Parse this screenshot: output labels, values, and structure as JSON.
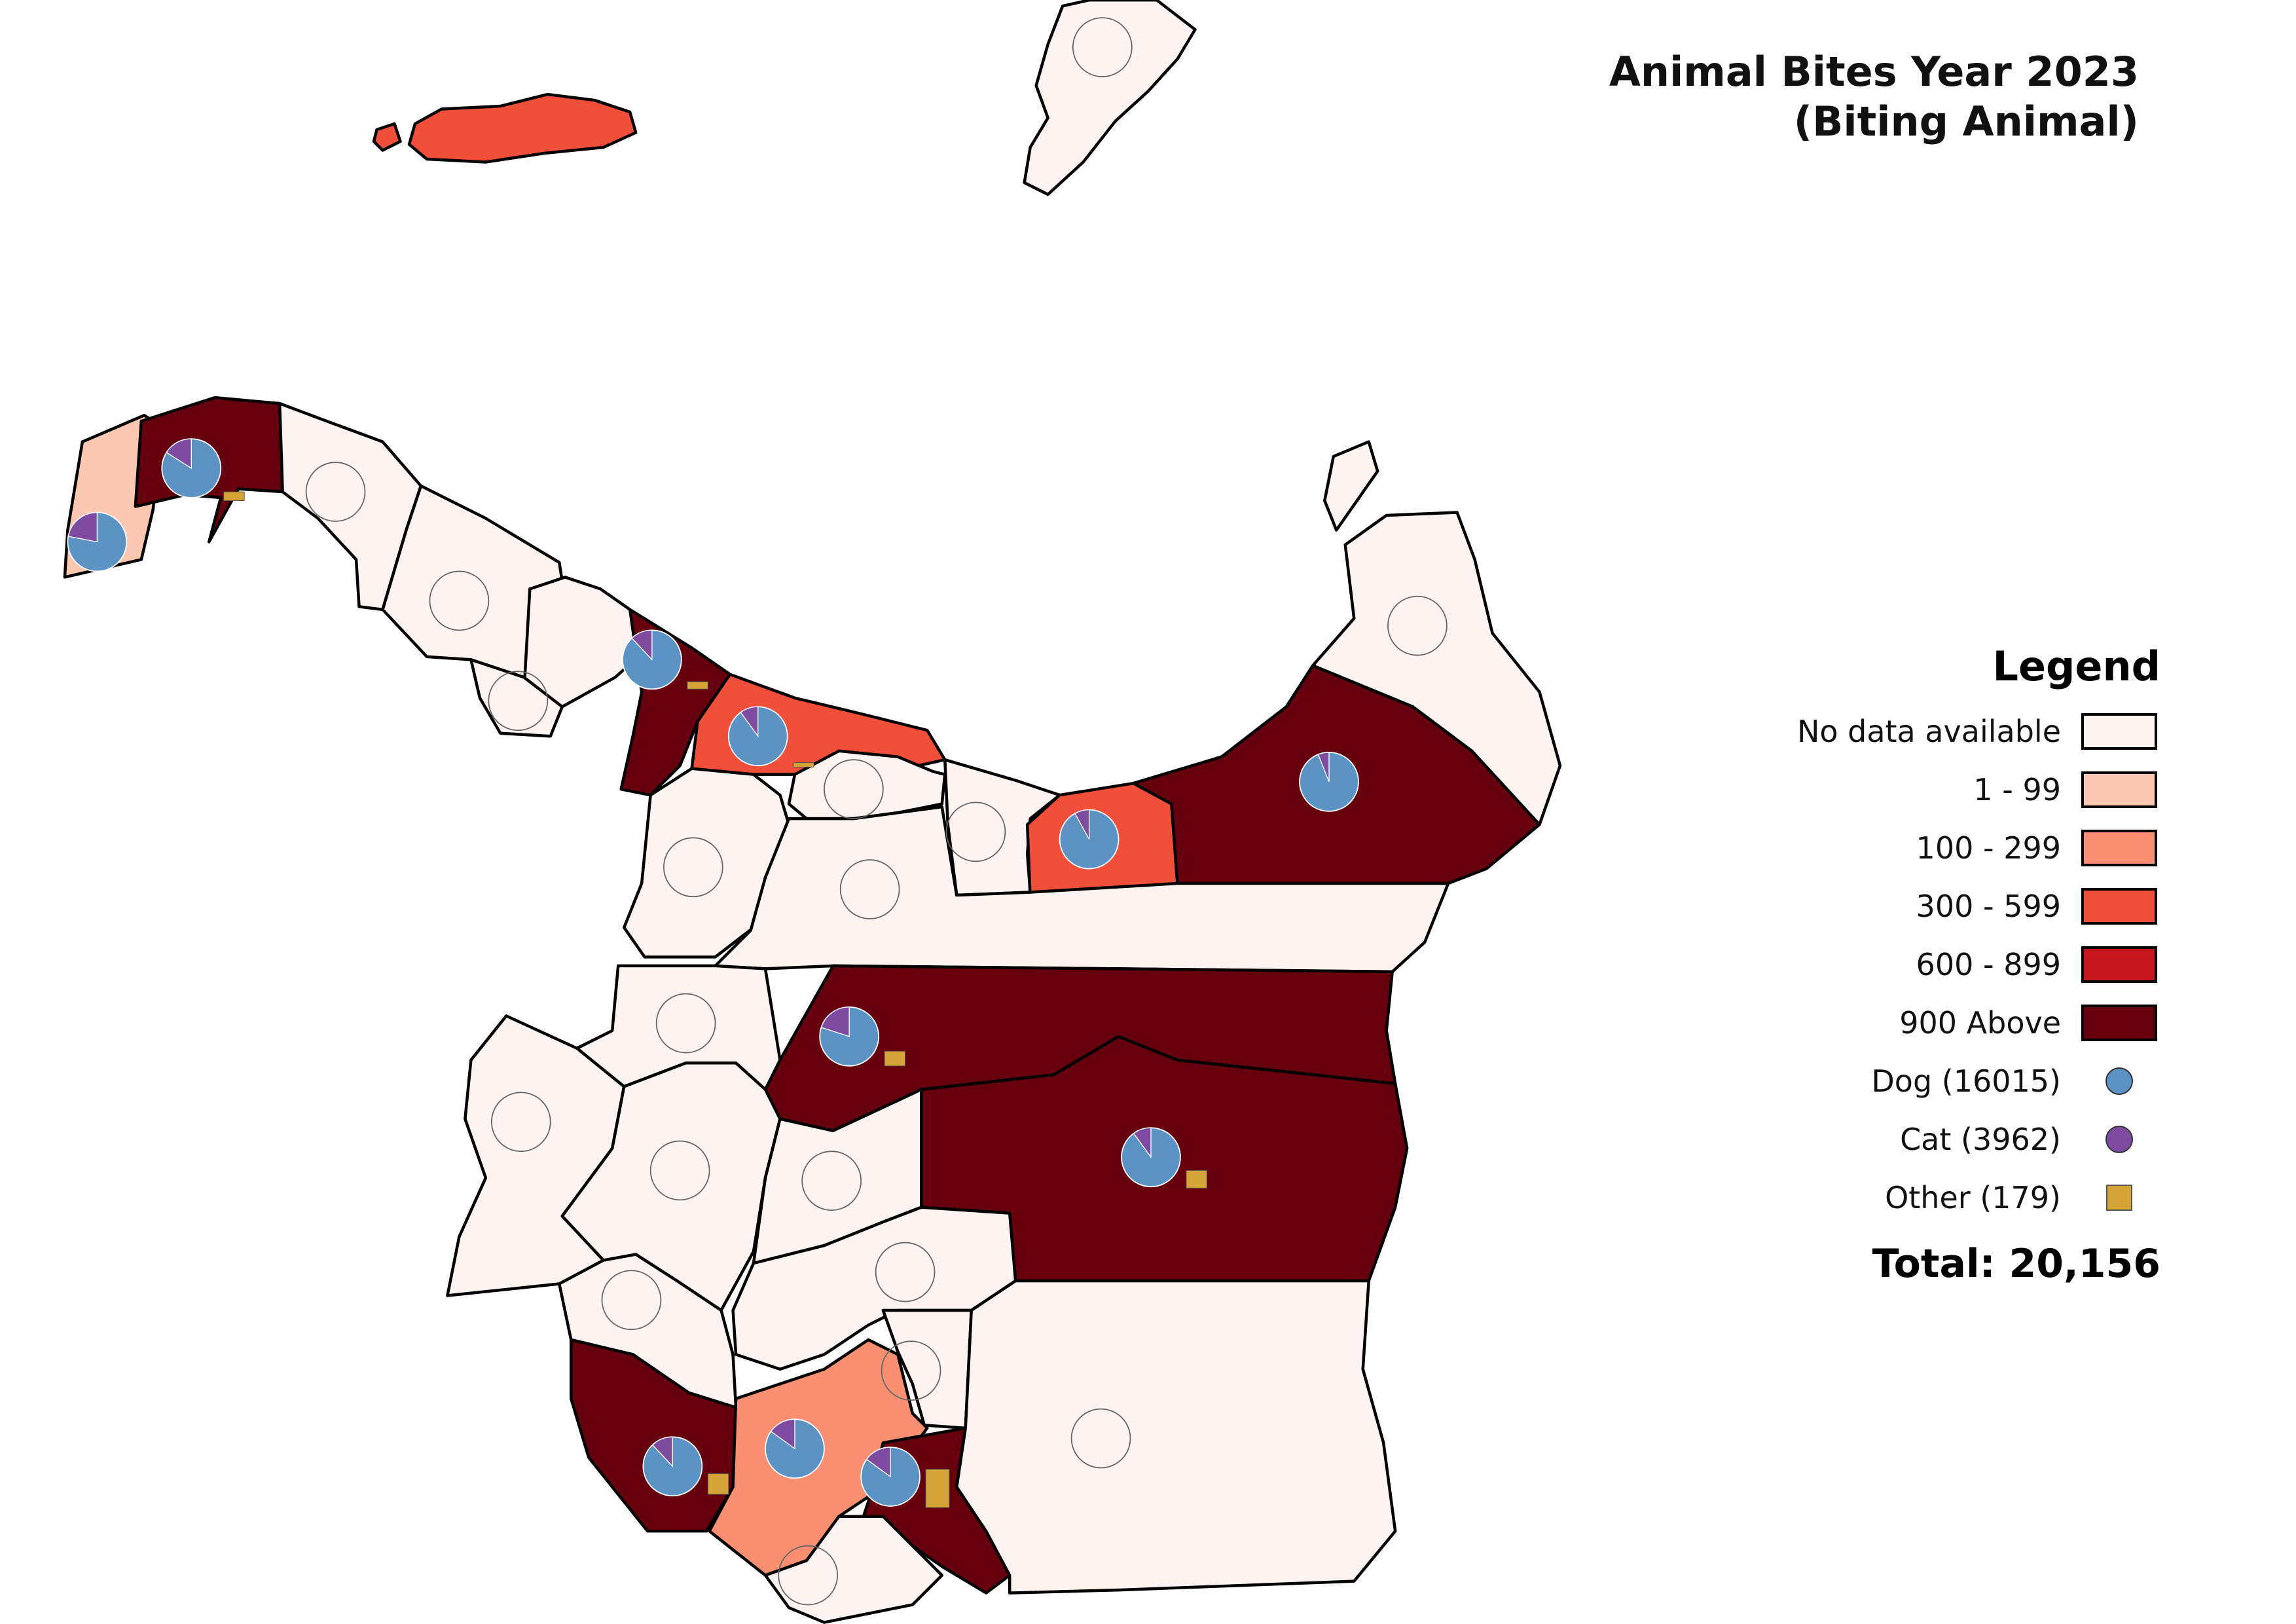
{
  "title": {
    "line1": "Animal Bites Year 2023",
    "line2": "(Biting Animal)"
  },
  "legend": {
    "heading": "Legend",
    "classes": [
      {
        "label": "No data available",
        "color": "#fdf3f0"
      },
      {
        "label": "1 - 99",
        "color": "#fcc8b2"
      },
      {
        "label": "100 - 299",
        "color": "#fb8f72"
      },
      {
        "label": "300 - 599",
        "color": "#f24f3a"
      },
      {
        "label": "600 - 899",
        "color": "#c7161d"
      },
      {
        "label": "900 Above",
        "color": "#66000f"
      }
    ],
    "symbols": [
      {
        "label": "Dog (16015)",
        "color": "#5b93c4",
        "shape": "circle"
      },
      {
        "label": "Cat (3962)",
        "color": "#7e4ba1",
        "shape": "circle"
      },
      {
        "label": "Other (179)",
        "color": "#d4a536",
        "shape": "square"
      }
    ],
    "total": "Total: 20,156"
  },
  "chart_data": {
    "type": "choropleth",
    "series": [
      "Dog",
      "Cat",
      "Other"
    ],
    "totals": {
      "Dog": 16015,
      "Cat": 3962,
      "Other": 179,
      "All": 20156
    },
    "classes": [
      "No data available",
      "1 - 99",
      "100 - 299",
      "300 - 599",
      "600 - 899",
      "900 Above"
    ]
  }
}
